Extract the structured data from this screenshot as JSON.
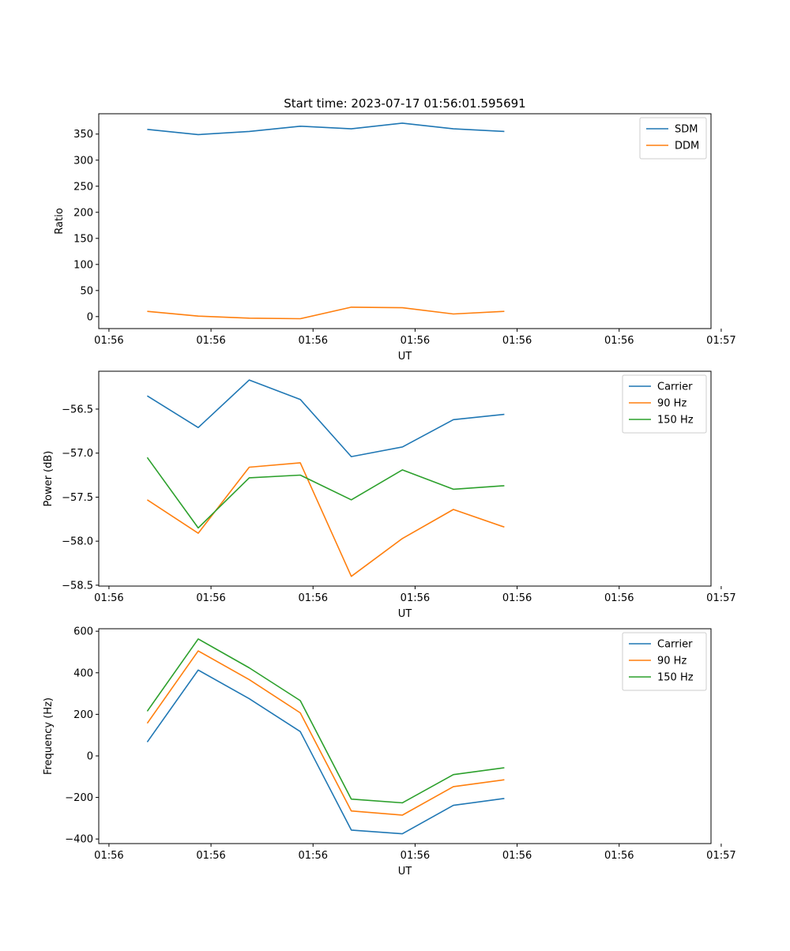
{
  "colors": {
    "c0": "#1f77b4",
    "c1": "#ff7f0e",
    "c2": "#2ca02c"
  },
  "chart_data": [
    {
      "type": "line",
      "title": "Start time: 2023-07-17 01:56:01.595691",
      "xlabel": "UT",
      "ylabel": "Ratio",
      "x": [
        1,
        2,
        3,
        4,
        5,
        6,
        7,
        8
      ],
      "xlim": [
        0.05,
        12.05
      ],
      "xticks": [
        0.25,
        2.25,
        4.25,
        6.25,
        8.25,
        10.25,
        12.25
      ],
      "xtick_labels": [
        "01:56",
        "01:56",
        "01:56",
        "01:56",
        "01:56",
        "01:56",
        "01:57"
      ],
      "ylim": [
        -23,
        389
      ],
      "yticks": [
        0,
        50,
        100,
        150,
        200,
        250,
        300,
        350
      ],
      "ytick_labels": [
        "0",
        "50",
        "100",
        "150",
        "200",
        "250",
        "300",
        "350"
      ],
      "legend_position": "upper-right",
      "series": [
        {
          "name": "SDM",
          "color": "c0",
          "values": [
            359,
            349,
            355,
            365,
            360,
            371,
            360,
            355
          ]
        },
        {
          "name": "DDM",
          "color": "c1",
          "values": [
            10,
            1,
            -3,
            -4,
            18,
            17,
            5,
            10
          ]
        }
      ]
    },
    {
      "type": "line",
      "title": "",
      "xlabel": "UT",
      "ylabel": "Power (dB)",
      "x": [
        1,
        2,
        3,
        4,
        5,
        6,
        7,
        8
      ],
      "xlim": [
        0.05,
        12.05
      ],
      "xticks": [
        0.25,
        2.25,
        4.25,
        6.25,
        8.25,
        10.25,
        12.25
      ],
      "xtick_labels": [
        "01:56",
        "01:56",
        "01:56",
        "01:56",
        "01:56",
        "01:56",
        "01:57"
      ],
      "ylim": [
        -58.51,
        -56.07
      ],
      "yticks": [
        -58.5,
        -58.0,
        -57.5,
        -57.0,
        -56.5
      ],
      "ytick_labels": [
        "−58.5",
        "−58.0",
        "−57.5",
        "−57.0",
        "−56.5"
      ],
      "legend_position": "upper-right",
      "series": [
        {
          "name": "Carrier",
          "color": "c0",
          "values": [
            -56.35,
            -56.71,
            -56.17,
            -56.39,
            -57.04,
            -56.93,
            -56.62,
            -56.56
          ]
        },
        {
          "name": "90 Hz",
          "color": "c1",
          "values": [
            -57.53,
            -57.91,
            -57.16,
            -57.11,
            -58.4,
            -57.97,
            -57.64,
            -57.84
          ]
        },
        {
          "name": "150 Hz",
          "color": "c2",
          "values": [
            -57.05,
            -57.85,
            -57.28,
            -57.25,
            -57.53,
            -57.19,
            -57.41,
            -57.37
          ]
        }
      ]
    },
    {
      "type": "line",
      "title": "",
      "xlabel": "UT",
      "ylabel": "Frequency (Hz)",
      "x": [
        1,
        2,
        3,
        4,
        5,
        6,
        7,
        8
      ],
      "xlim": [
        0.05,
        12.05
      ],
      "xticks": [
        0.25,
        2.25,
        4.25,
        6.25,
        8.25,
        10.25,
        12.25
      ],
      "xtick_labels": [
        "01:56",
        "01:56",
        "01:56",
        "01:56",
        "01:56",
        "01:56",
        "01:57"
      ],
      "ylim": [
        -422,
        612
      ],
      "yticks": [
        -400,
        -200,
        0,
        200,
        400,
        600
      ],
      "ytick_labels": [
        "−400",
        "−200",
        "0",
        "200",
        "400",
        "600"
      ],
      "legend_position": "upper-right",
      "series": [
        {
          "name": "Carrier",
          "color": "c0",
          "values": [
            67,
            413,
            275,
            117,
            -357,
            -375,
            -238,
            -205
          ]
        },
        {
          "name": "90 Hz",
          "color": "c1",
          "values": [
            157,
            505,
            367,
            207,
            -265,
            -285,
            -148,
            -115
          ]
        },
        {
          "name": "150 Hz",
          "color": "c2",
          "values": [
            215,
            563,
            424,
            266,
            -208,
            -226,
            -90,
            -57
          ]
        }
      ]
    }
  ]
}
